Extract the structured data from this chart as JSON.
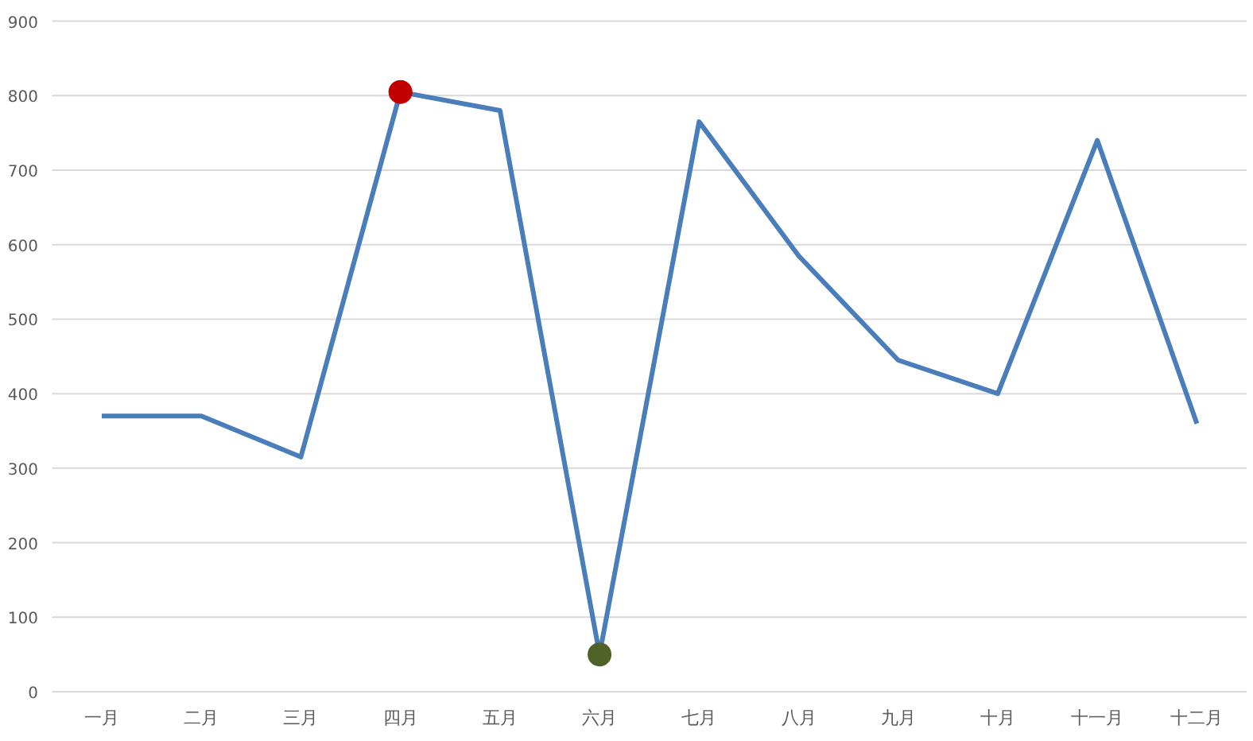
{
  "chart_data": {
    "type": "line",
    "categories": [
      "一月",
      "二月",
      "三月",
      "四月",
      "五月",
      "六月",
      "七月",
      "八月",
      "九月",
      "十月",
      "十一月",
      "十二月"
    ],
    "series": [
      {
        "color": "#4a7ebb",
        "values": [
          370,
          370,
          315,
          805,
          780,
          50,
          765,
          585,
          445,
          400,
          740,
          360
        ]
      },
      {
        "type": "scatter",
        "marker": "circle",
        "color": "#c00000",
        "x": [
          "四月"
        ],
        "values": [
          805
        ]
      },
      {
        "type": "scatter",
        "marker": "circle",
        "color": "#4f6228",
        "x": [
          "六月"
        ],
        "values": [
          50
        ]
      }
    ],
    "ylim": [
      0,
      900
    ],
    "yticks": [
      0,
      100,
      200,
      300,
      400,
      500,
      600,
      700,
      800,
      900
    ],
    "grid": "y",
    "line_style": "solid"
  }
}
